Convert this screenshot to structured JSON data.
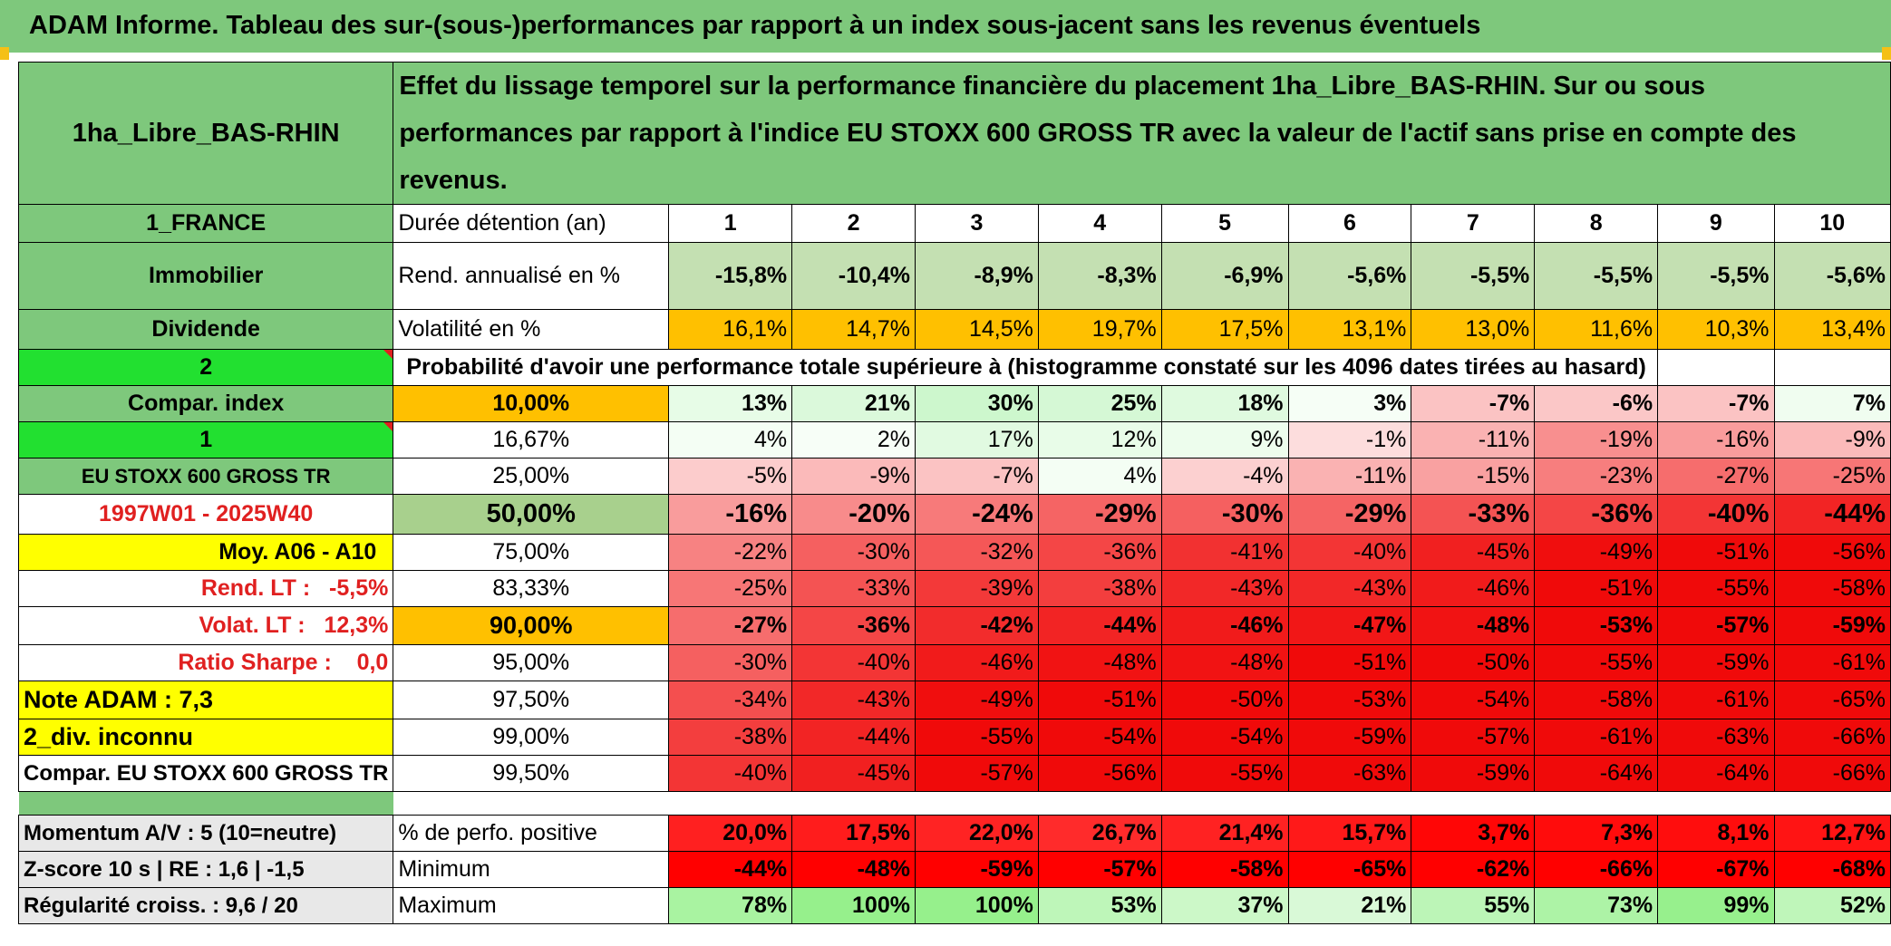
{
  "banner": "ADAM Informe. Tableau des sur-(sous-)performances par rapport à un index sous-jacent sans les revenus éventuels",
  "fund_name": "1ha_Libre_BAS-RHIN",
  "description": "Effet du lissage temporel sur la performance financière du placement 1ha_Libre_BAS-RHIN. Sur ou sous performances par rapport à l'indice EU STOXX 600 GROSS TR avec la valeur de l'actif sans prise en compte des revenus.",
  "side": {
    "country": "1_FRANCE",
    "category": "Immobilier",
    "dividend": "Dividende",
    "two": "2",
    "compar_index": "Compar. index",
    "one": "1",
    "index_name": "EU STOXX 600 GROSS TR",
    "period": "1997W01 - 2025W40",
    "moy": "Moy. A06 - A10",
    "rend_lt": "Rend. LT :   -5,5%",
    "volat_lt": "Volat. LT :   12,3%",
    "sharpe": "Ratio Sharpe :    0,0",
    "note": "Note ADAM : 7,3",
    "div": "2_div. inconnu",
    "compar_full": "Compar. EU STOXX 600 GROSS TR",
    "momentum": "Momentum A/V : 5 (10=neutre)",
    "zscore": "Z-score 10 s | RE : 1,6 | -1,5",
    "regularite": "Régularité croiss. : 9,6 / 20"
  },
  "labels": {
    "duree": "Durée détention (an)",
    "rend": "Rend. annualisé en %",
    "vol": "Volatilité en %",
    "proba": "Probabilité d'avoir une performance totale supérieure à (histogramme constaté sur les 4096 dates tirées au hasard)",
    "pos": "% de perfo. positive",
    "min": "Minimum",
    "max": "Maximum"
  },
  "years": [
    "1",
    "2",
    "3",
    "4",
    "5",
    "6",
    "7",
    "8",
    "9",
    "10"
  ],
  "rend": [
    "-15,8%",
    "-10,4%",
    "-8,9%",
    "-8,3%",
    "-6,9%",
    "-5,6%",
    "-5,5%",
    "-5,5%",
    "-5,5%",
    "-5,6%"
  ],
  "vol": [
    "16,1%",
    "14,7%",
    "14,5%",
    "19,7%",
    "17,5%",
    "13,1%",
    "13,0%",
    "11,6%",
    "10,3%",
    "13,4%"
  ],
  "quantiles": [
    {
      "p": "10,00%",
      "v": [
        "13%",
        "21%",
        "30%",
        "25%",
        "18%",
        "3%",
        "-7%",
        "-6%",
        "-7%",
        "7%"
      ]
    },
    {
      "p": "16,67%",
      "v": [
        "4%",
        "2%",
        "17%",
        "12%",
        "9%",
        "-1%",
        "-11%",
        "-19%",
        "-16%",
        "-9%"
      ]
    },
    {
      "p": "25,00%",
      "v": [
        "-5%",
        "-9%",
        "-7%",
        "4%",
        "-4%",
        "-11%",
        "-15%",
        "-23%",
        "-27%",
        "-25%"
      ]
    },
    {
      "p": "50,00%",
      "v": [
        "-16%",
        "-20%",
        "-24%",
        "-29%",
        "-30%",
        "-29%",
        "-33%",
        "-36%",
        "-40%",
        "-44%"
      ]
    },
    {
      "p": "75,00%",
      "v": [
        "-22%",
        "-30%",
        "-32%",
        "-36%",
        "-41%",
        "-40%",
        "-45%",
        "-49%",
        "-51%",
        "-56%"
      ]
    },
    {
      "p": "83,33%",
      "v": [
        "-25%",
        "-33%",
        "-39%",
        "-38%",
        "-43%",
        "-43%",
        "-46%",
        "-51%",
        "-55%",
        "-58%"
      ]
    },
    {
      "p": "90,00%",
      "v": [
        "-27%",
        "-36%",
        "-42%",
        "-44%",
        "-46%",
        "-47%",
        "-48%",
        "-53%",
        "-57%",
        "-59%"
      ]
    },
    {
      "p": "95,00%",
      "v": [
        "-30%",
        "-40%",
        "-46%",
        "-48%",
        "-48%",
        "-51%",
        "-50%",
        "-55%",
        "-59%",
        "-61%"
      ]
    },
    {
      "p": "97,50%",
      "v": [
        "-34%",
        "-43%",
        "-49%",
        "-51%",
        "-50%",
        "-53%",
        "-54%",
        "-58%",
        "-61%",
        "-65%"
      ]
    },
    {
      "p": "99,00%",
      "v": [
        "-38%",
        "-44%",
        "-55%",
        "-54%",
        "-54%",
        "-59%",
        "-57%",
        "-61%",
        "-63%",
        "-66%"
      ]
    },
    {
      "p": "99,50%",
      "v": [
        "-40%",
        "-45%",
        "-57%",
        "-56%",
        "-55%",
        "-63%",
        "-59%",
        "-64%",
        "-64%",
        "-66%"
      ]
    }
  ],
  "pos": [
    "20,0%",
    "17,5%",
    "22,0%",
    "26,7%",
    "21,4%",
    "15,7%",
    "3,7%",
    "7,3%",
    "8,1%",
    "12,7%"
  ],
  "min": [
    "-44%",
    "-48%",
    "-59%",
    "-57%",
    "-58%",
    "-65%",
    "-62%",
    "-66%",
    "-67%",
    "-68%"
  ],
  "max": [
    "78%",
    "100%",
    "100%",
    "53%",
    "37%",
    "21%",
    "55%",
    "73%",
    "99%",
    "52%"
  ],
  "colors": {
    "banner": "#7ec87c",
    "label_green": "#7ec87c",
    "bright_green": "#22e030",
    "yellow": "#ffff00",
    "orange": "#ffc000",
    "red_text": "#e02020",
    "light_green": "#c4e0b2"
  }
}
